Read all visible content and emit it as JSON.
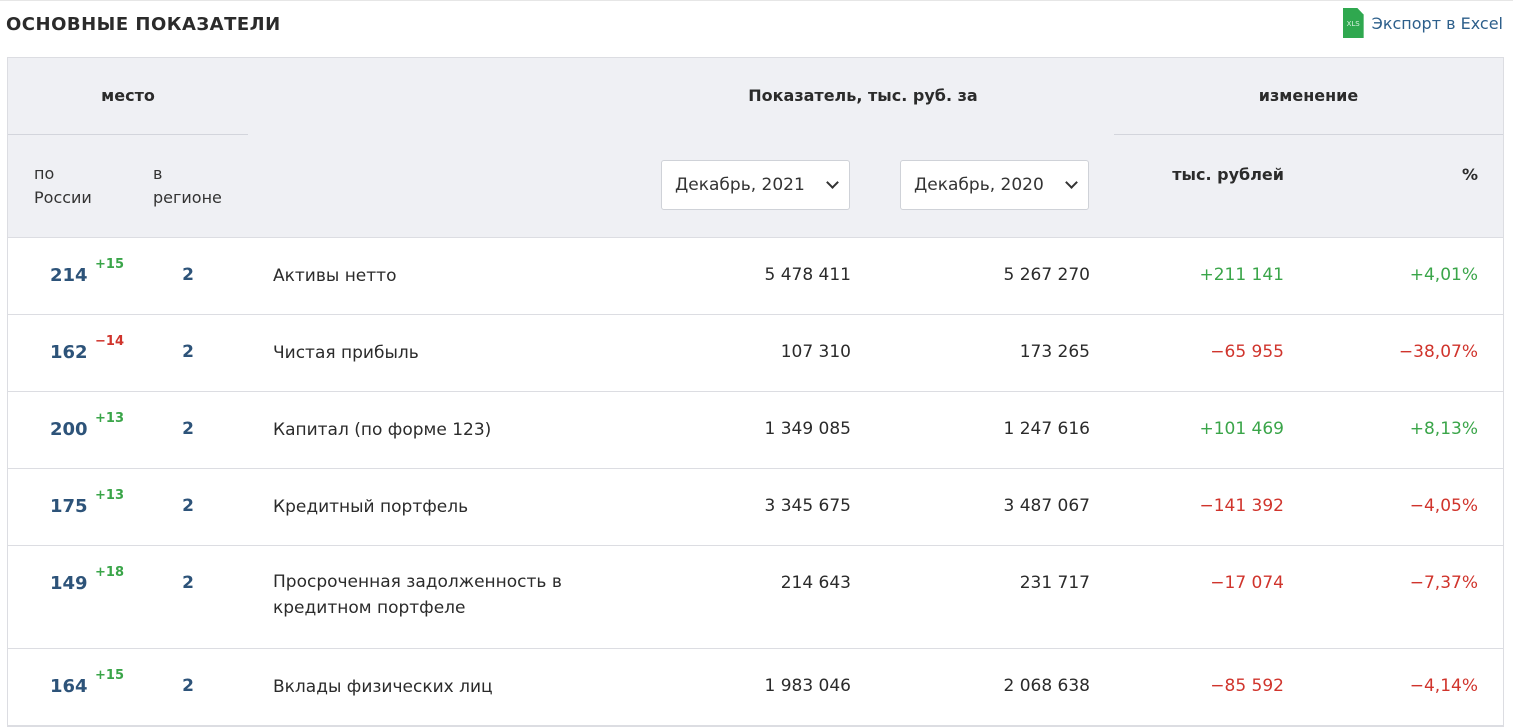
{
  "title": "ОСНОВНЫЕ ПОКАЗАТЕЛИ",
  "export": {
    "label": "Экспорт в Excel",
    "icon": "xls-file-icon",
    "icon_text": "XLS"
  },
  "header": {
    "place": "место",
    "indicator": "Показатель, тыс. руб. за",
    "change": "изменение",
    "by_russia_line1": "по",
    "by_russia_line2": "России",
    "in_region_line1": "в",
    "in_region_line2": "регионе",
    "thousand_rub": "тыс. рублей",
    "percent": "%",
    "period1": "Декабрь, 2021",
    "period2": "Декабрь, 2020"
  },
  "colors": {
    "positive": "#3aa549",
    "negative": "#d0342c",
    "rank": "#2d5379",
    "header_bg": "#eff0f4"
  },
  "rows": [
    {
      "rank": "214",
      "delta": "+15",
      "delta_sign": "pos",
      "region": "2",
      "name": "Активы нетто",
      "v1": "5 478 411",
      "v2": "5 267 270",
      "dabs": "+211 141",
      "dpct": "+4,01%",
      "sign": "pos"
    },
    {
      "rank": "162",
      "delta": "−14",
      "delta_sign": "neg",
      "region": "2",
      "name": "Чистая прибыль",
      "v1": "107 310",
      "v2": "173 265",
      "dabs": "−65 955",
      "dpct": "−38,07%",
      "sign": "neg"
    },
    {
      "rank": "200",
      "delta": "+13",
      "delta_sign": "pos",
      "region": "2",
      "name": "Капитал (по форме 123)",
      "v1": "1 349 085",
      "v2": "1 247 616",
      "dabs": "+101 469",
      "dpct": "+8,13%",
      "sign": "pos"
    },
    {
      "rank": "175",
      "delta": "+13",
      "delta_sign": "pos",
      "region": "2",
      "name": "Кредитный портфель",
      "v1": "3 345 675",
      "v2": "3 487 067",
      "dabs": "−141 392",
      "dpct": "−4,05%",
      "sign": "neg"
    },
    {
      "rank": "149",
      "delta": "+18",
      "delta_sign": "pos",
      "region": "2",
      "name": "Просроченная задолженность в кредитном портфеле",
      "v1": "214 643",
      "v2": "231 717",
      "dabs": "−17 074",
      "dpct": "−7,37%",
      "sign": "neg"
    },
    {
      "rank": "164",
      "delta": "+15",
      "delta_sign": "pos",
      "region": "2",
      "name": "Вклады физических лиц",
      "v1": "1 983 046",
      "v2": "2 068 638",
      "dabs": "−85 592",
      "dpct": "−4,14%",
      "sign": "neg"
    }
  ]
}
